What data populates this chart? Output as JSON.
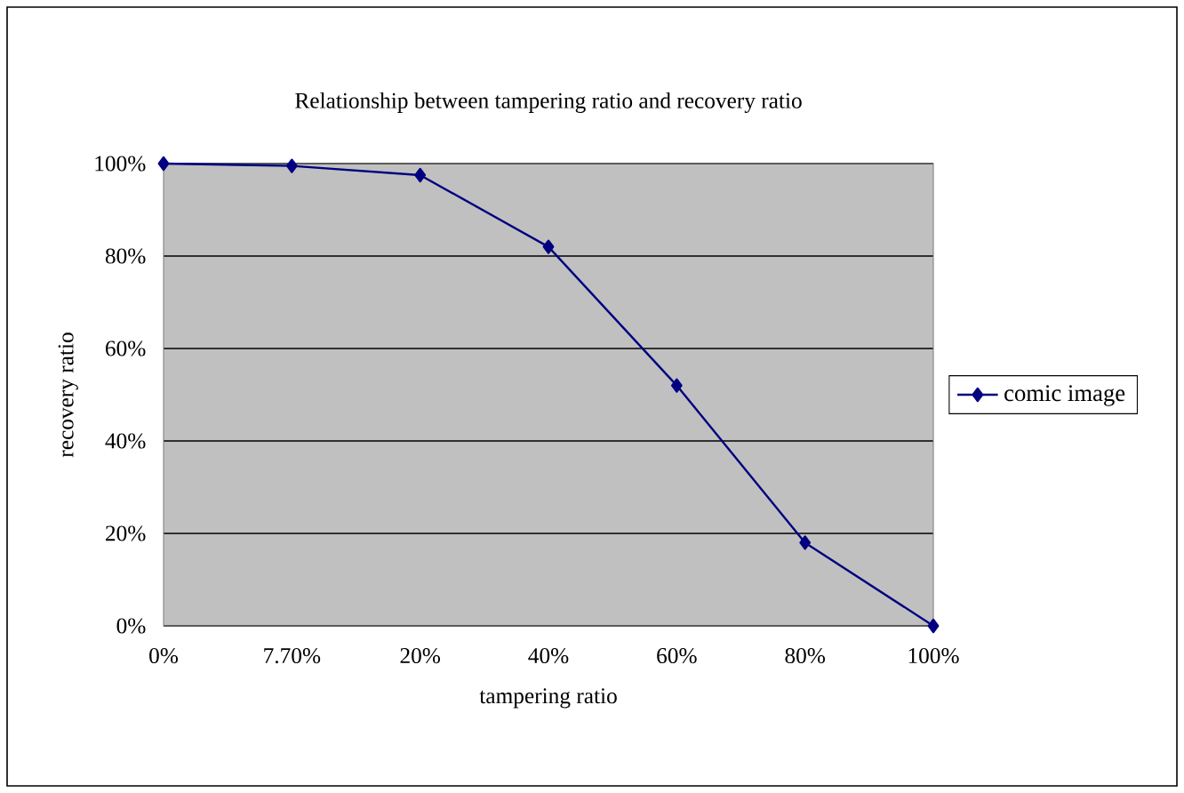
{
  "chart_data": {
    "type": "line",
    "title": "Relationship between tampering ratio and recovery ratio",
    "xlabel": "tampering ratio",
    "ylabel": "recovery ratio",
    "categories": [
      "0%",
      "7.70%",
      "20%",
      "40%",
      "60%",
      "80%",
      "100%"
    ],
    "series": [
      {
        "name": "comic image",
        "color": "#000080",
        "values": [
          100,
          99.5,
          97.5,
          82,
          52,
          18,
          0
        ]
      }
    ],
    "ylim": [
      0,
      100
    ],
    "yticks": [
      {
        "value": 0,
        "label": "0%"
      },
      {
        "value": 20,
        "label": "20%"
      },
      {
        "value": 40,
        "label": "40%"
      },
      {
        "value": 60,
        "label": "60%"
      },
      {
        "value": 80,
        "label": "80%"
      },
      {
        "value": 100,
        "label": "100%"
      }
    ],
    "grid": "y",
    "legend": "right",
    "marker": "diamond",
    "line_style": "solid"
  }
}
